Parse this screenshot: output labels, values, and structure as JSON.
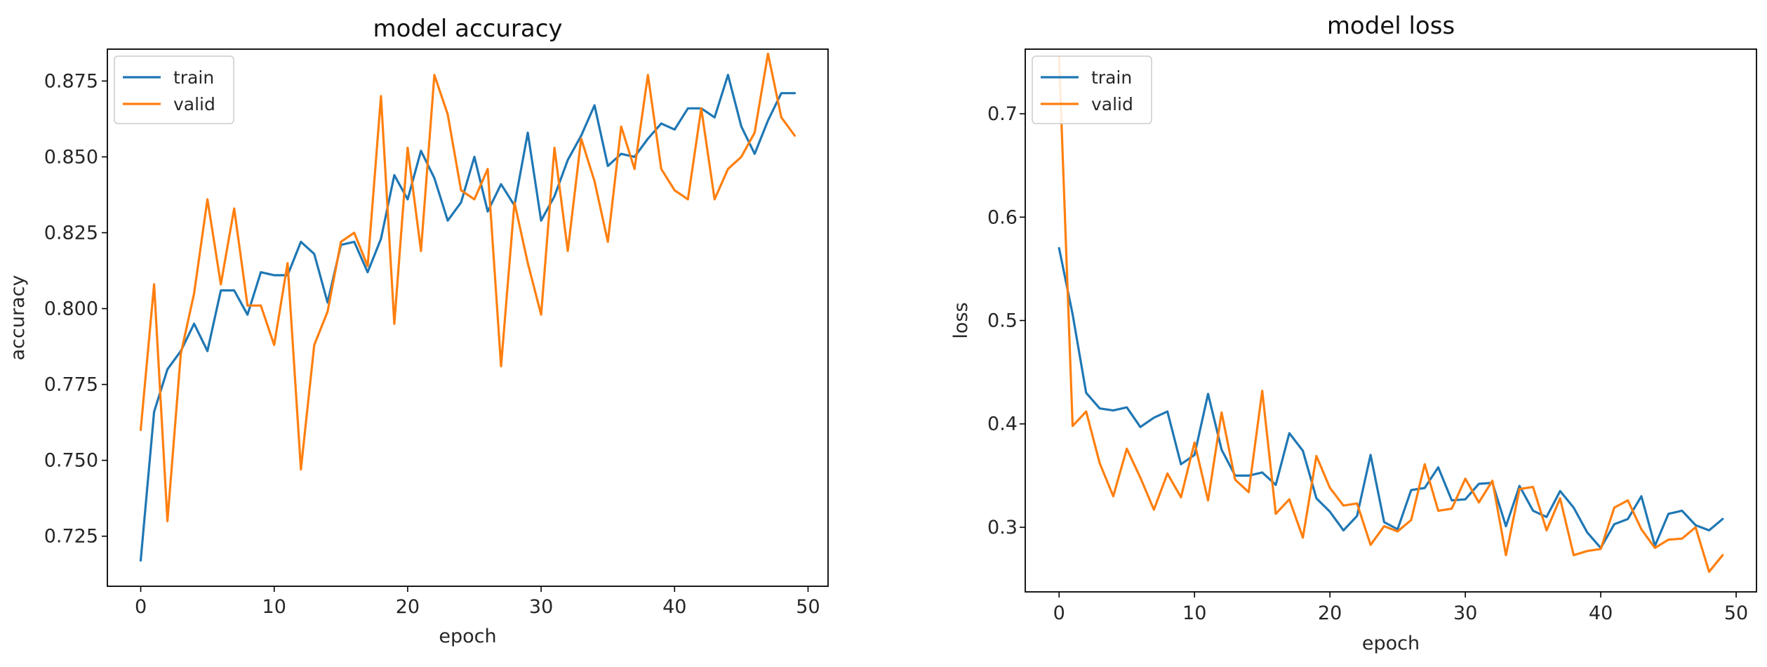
{
  "chart_data": [
    {
      "type": "line",
      "title": "model accuracy",
      "xlabel": "epoch",
      "ylabel": "accuracy",
      "xlim": [
        -2.5,
        51.5
      ],
      "ylim": [
        0.7085,
        0.8855
      ],
      "xticks": [
        0,
        10,
        20,
        30,
        40,
        50
      ],
      "xtick_labels": [
        "0",
        "10",
        "20",
        "30",
        "40",
        "50"
      ],
      "yticks": [
        0.725,
        0.75,
        0.775,
        0.8,
        0.825,
        0.85,
        0.875
      ],
      "ytick_labels": [
        "0.725",
        "0.750",
        "0.775",
        "0.800",
        "0.825",
        "0.850",
        "0.875"
      ],
      "legend_position": "top-left",
      "grid": false,
      "series": [
        {
          "name": "train",
          "color": "#1f77b4",
          "x": [
            0,
            1,
            2,
            3,
            4,
            5,
            6,
            7,
            8,
            9,
            10,
            11,
            12,
            13,
            14,
            15,
            16,
            17,
            18,
            19,
            20,
            21,
            22,
            23,
            24,
            25,
            26,
            27,
            28,
            29,
            30,
            31,
            32,
            33,
            34,
            35,
            36,
            37,
            38,
            39,
            40,
            41,
            42,
            43,
            44,
            45,
            46,
            47,
            48,
            49
          ],
          "values": [
            0.717,
            0.766,
            0.78,
            0.786,
            0.795,
            0.786,
            0.806,
            0.806,
            0.798,
            0.812,
            0.811,
            0.811,
            0.822,
            0.818,
            0.802,
            0.821,
            0.822,
            0.812,
            0.823,
            0.844,
            0.836,
            0.852,
            0.843,
            0.829,
            0.835,
            0.85,
            0.832,
            0.841,
            0.834,
            0.858,
            0.829,
            0.837,
            0.849,
            0.857,
            0.867,
            0.847,
            0.851,
            0.85,
            0.856,
            0.861,
            0.859,
            0.866,
            0.866,
            0.863,
            0.877,
            0.86,
            0.851,
            0.862,
            0.871,
            0.871
          ]
        },
        {
          "name": "valid",
          "color": "#ff7f0e",
          "x": [
            0,
            1,
            2,
            3,
            4,
            5,
            6,
            7,
            8,
            9,
            10,
            11,
            12,
            13,
            14,
            15,
            16,
            17,
            18,
            19,
            20,
            21,
            22,
            23,
            24,
            25,
            26,
            27,
            28,
            29,
            30,
            31,
            32,
            33,
            34,
            35,
            36,
            37,
            38,
            39,
            40,
            41,
            42,
            43,
            44,
            45,
            46,
            47,
            48,
            49
          ],
          "values": [
            0.76,
            0.808,
            0.73,
            0.785,
            0.805,
            0.836,
            0.808,
            0.833,
            0.801,
            0.801,
            0.788,
            0.815,
            0.747,
            0.788,
            0.799,
            0.822,
            0.825,
            0.814,
            0.87,
            0.795,
            0.853,
            0.819,
            0.877,
            0.864,
            0.839,
            0.836,
            0.846,
            0.781,
            0.835,
            0.815,
            0.798,
            0.853,
            0.819,
            0.856,
            0.842,
            0.822,
            0.86,
            0.846,
            0.877,
            0.846,
            0.839,
            0.836,
            0.866,
            0.836,
            0.846,
            0.85,
            0.858,
            0.884,
            0.863,
            0.857
          ]
        }
      ]
    },
    {
      "type": "line",
      "title": "model loss",
      "xlabel": "epoch",
      "ylabel": "loss",
      "xlim": [
        -2.5,
        51.5
      ],
      "ylim": [
        0.2375,
        0.7625
      ],
      "xticks": [
        0,
        10,
        20,
        30,
        40,
        50
      ],
      "xtick_labels": [
        "0",
        "10",
        "20",
        "30",
        "40",
        "50"
      ],
      "yticks": [
        0.3,
        0.4,
        0.5,
        0.6,
        0.7
      ],
      "ytick_labels": [
        "0.3",
        "0.4",
        "0.5",
        "0.6",
        "0.7"
      ],
      "legend_position": "top-left",
      "grid": false,
      "series": [
        {
          "name": "train",
          "color": "#1f77b4",
          "x": [
            0,
            1,
            2,
            3,
            4,
            5,
            6,
            7,
            8,
            9,
            10,
            11,
            12,
            13,
            14,
            15,
            16,
            17,
            18,
            19,
            20,
            21,
            22,
            23,
            24,
            25,
            26,
            27,
            28,
            29,
            30,
            31,
            32,
            33,
            34,
            35,
            36,
            37,
            38,
            39,
            40,
            41,
            42,
            43,
            44,
            45,
            46,
            47,
            48,
            49
          ],
          "values": [
            0.57,
            0.506,
            0.43,
            0.415,
            0.413,
            0.416,
            0.397,
            0.406,
            0.412,
            0.361,
            0.37,
            0.429,
            0.375,
            0.35,
            0.35,
            0.353,
            0.341,
            0.391,
            0.374,
            0.328,
            0.315,
            0.297,
            0.311,
            0.37,
            0.305,
            0.298,
            0.336,
            0.338,
            0.358,
            0.326,
            0.327,
            0.342,
            0.343,
            0.301,
            0.34,
            0.316,
            0.31,
            0.335,
            0.319,
            0.295,
            0.28,
            0.303,
            0.308,
            0.33,
            0.282,
            0.313,
            0.316,
            0.302,
            0.297,
            0.308
          ]
        },
        {
          "name": "valid",
          "color": "#ff7f0e",
          "x": [
            0,
            1,
            2,
            3,
            4,
            5,
            6,
            7,
            8,
            9,
            10,
            11,
            12,
            13,
            14,
            15,
            16,
            17,
            18,
            19,
            20,
            21,
            22,
            23,
            24,
            25,
            26,
            27,
            28,
            29,
            30,
            31,
            32,
            33,
            34,
            35,
            36,
            37,
            38,
            39,
            40,
            41,
            42,
            43,
            44,
            45,
            46,
            47,
            48,
            49
          ],
          "values": [
            0.755,
            0.398,
            0.412,
            0.362,
            0.33,
            0.376,
            0.348,
            0.317,
            0.352,
            0.329,
            0.382,
            0.326,
            0.411,
            0.346,
            0.334,
            0.432,
            0.313,
            0.327,
            0.29,
            0.369,
            0.338,
            0.321,
            0.323,
            0.283,
            0.301,
            0.296,
            0.307,
            0.361,
            0.316,
            0.318,
            0.347,
            0.324,
            0.345,
            0.273,
            0.337,
            0.339,
            0.297,
            0.328,
            0.273,
            0.277,
            0.279,
            0.319,
            0.326,
            0.298,
            0.28,
            0.288,
            0.289,
            0.3,
            0.257,
            0.273
          ]
        }
      ]
    }
  ]
}
